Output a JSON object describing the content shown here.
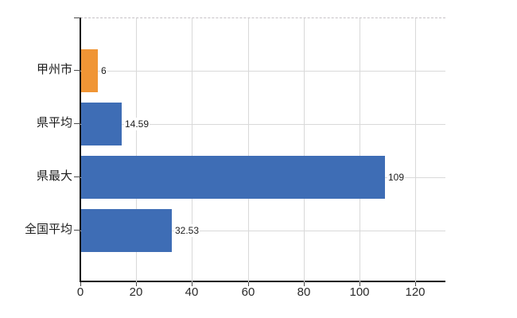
{
  "chart_data": {
    "type": "bar",
    "orientation": "horizontal",
    "title": "",
    "categories": [
      "甲州市",
      "県平均",
      "県最大",
      "全国平均"
    ],
    "values": [
      6,
      14.59,
      109,
      32.53
    ],
    "value_labels": [
      "6",
      "14.59",
      "109",
      "32.53"
    ],
    "bar_colors": [
      "#F09535",
      "#3E6DB5",
      "#3E6DB5",
      "#3E6DB5"
    ],
    "x_ticks": [
      0,
      20,
      40,
      60,
      80,
      100,
      120
    ],
    "x_tick_labels": [
      "0",
      "20",
      "40",
      "60",
      "80",
      "100",
      "120"
    ],
    "xlim": [
      0,
      130.8
    ],
    "grid": true,
    "gridline_color": "#d9d9d9",
    "axis_color": "#111111",
    "plot_top_border_style": "dashed",
    "background": "#ffffff",
    "legend_position": "none"
  }
}
